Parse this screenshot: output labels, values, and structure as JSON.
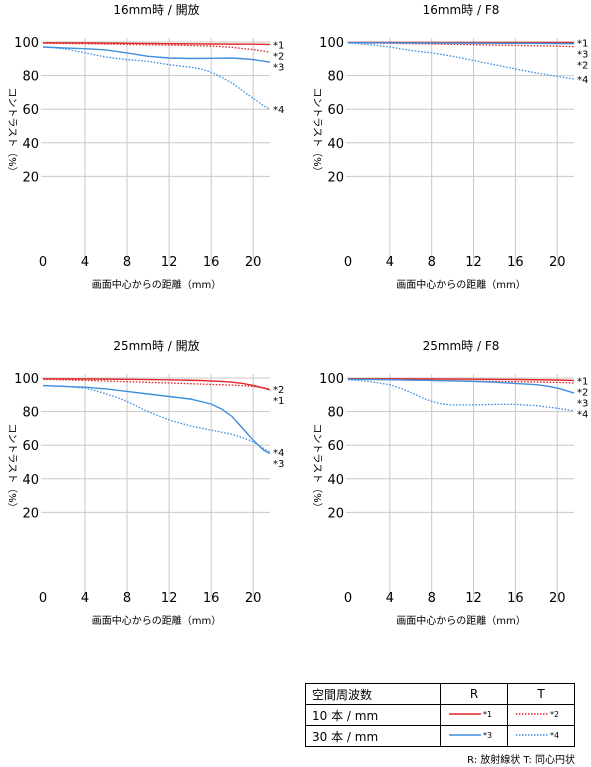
{
  "colors": {
    "red": "#e32626",
    "blue": "#3f8ede",
    "grid": "#c8c8c8"
  },
  "chart_data": [
    {
      "type": "line",
      "title": "16mm時 / 開放",
      "xlabel": "画面中心からの距離（mm）",
      "ylabel": "コントラスト（%）",
      "xlim": [
        0,
        21.6
      ],
      "ylim": [
        0,
        100
      ],
      "xticks": [
        0,
        4,
        8,
        12,
        16,
        20
      ],
      "yticks": [
        20,
        40,
        60,
        80,
        100
      ],
      "grid": true,
      "series": [
        {
          "name": "*1",
          "color": "red",
          "dash": "solid",
          "x": [
            0,
            4,
            8,
            12,
            16,
            20,
            21.6
          ],
          "y": [
            99.5,
            99.4,
            99.2,
            99,
            98.8,
            98.7,
            98.6
          ]
        },
        {
          "name": "*2",
          "color": "red",
          "dash": "dotted",
          "x": [
            0,
            4,
            8,
            12,
            16,
            18,
            20,
            21.6
          ],
          "y": [
            99.3,
            99,
            98.6,
            98.2,
            97.6,
            96.8,
            95.5,
            94
          ]
        },
        {
          "name": "*3",
          "color": "blue",
          "dash": "solid",
          "x": [
            0,
            2,
            4,
            6,
            8,
            10,
            12,
            14,
            16,
            18,
            20,
            21.6
          ],
          "y": [
            97,
            96.5,
            96,
            95.3,
            93.5,
            91.5,
            90.5,
            90.2,
            90.3,
            90.5,
            89.5,
            88
          ]
        },
        {
          "name": "*4",
          "color": "blue",
          "dash": "dotted",
          "x": [
            0,
            2,
            4,
            6,
            8,
            10,
            12,
            14,
            15,
            16,
            17,
            18,
            19,
            20,
            21,
            21.6
          ],
          "y": [
            97,
            96,
            93.5,
            91,
            89.5,
            88.5,
            86.5,
            85,
            84,
            82,
            79,
            75.5,
            71,
            66.5,
            62,
            60
          ]
        }
      ]
    },
    {
      "type": "line",
      "title": "16mm時 / F8",
      "xlabel": "画面中心からの距離（mm）",
      "ylabel": "コントラスト（%）",
      "xlim": [
        0,
        21.6
      ],
      "ylim": [
        0,
        100
      ],
      "xticks": [
        0,
        4,
        8,
        12,
        16,
        20
      ],
      "yticks": [
        20,
        40,
        60,
        80,
        100
      ],
      "grid": true,
      "series": [
        {
          "name": "*1",
          "color": "red",
          "dash": "solid",
          "x": [
            0,
            4,
            8,
            12,
            16,
            20,
            21.6
          ],
          "y": [
            99.7,
            99.7,
            99.7,
            99.7,
            99.7,
            99.7,
            99.7
          ]
        },
        {
          "name": "*2",
          "color": "red",
          "dash": "dotted",
          "x": [
            0,
            4,
            8,
            12,
            16,
            20,
            21.6
          ],
          "y": [
            99.6,
            99.2,
            98.8,
            98.4,
            98,
            97.5,
            97.2
          ]
        },
        {
          "name": "*3",
          "color": "blue",
          "dash": "solid",
          "x": [
            0,
            4,
            8,
            12,
            16,
            20,
            21.6
          ],
          "y": [
            99.6,
            99.5,
            99.4,
            99.3,
            99.2,
            99.1,
            99
          ]
        },
        {
          "name": "*4",
          "color": "blue",
          "dash": "dotted",
          "x": [
            0,
            2,
            4,
            6,
            8,
            10,
            12,
            14,
            16,
            18,
            20,
            21.6
          ],
          "y": [
            99.5,
            98.5,
            97,
            95,
            93.5,
            91.5,
            89,
            86.5,
            84,
            81.5,
            79.5,
            78
          ]
        }
      ]
    },
    {
      "type": "line",
      "title": "25mm時 / 開放",
      "xlabel": "画面中心からの距離（mm）",
      "ylabel": "コントラスト（%）",
      "xlim": [
        0,
        21.6
      ],
      "ylim": [
        0,
        100
      ],
      "xticks": [
        0,
        4,
        8,
        12,
        16,
        20
      ],
      "yticks": [
        20,
        40,
        60,
        80,
        100
      ],
      "grid": true,
      "series": [
        {
          "name": "*1",
          "color": "red",
          "dash": "solid",
          "x": [
            0,
            4,
            8,
            12,
            15,
            17,
            18,
            19,
            20,
            21,
            21.6
          ],
          "y": [
            99.5,
            99.4,
            99.2,
            98.9,
            98.5,
            98,
            97.5,
            96.8,
            95.6,
            94,
            93
          ]
        },
        {
          "name": "*2",
          "color": "red",
          "dash": "dotted",
          "x": [
            0,
            4,
            8,
            12,
            16,
            18,
            20,
            21.6
          ],
          "y": [
            99.2,
            98.6,
            97.8,
            97,
            96.2,
            95.8,
            95,
            93.5
          ]
        },
        {
          "name": "*3",
          "color": "blue",
          "dash": "solid",
          "x": [
            0,
            2,
            4,
            6,
            8,
            10,
            12,
            14,
            16,
            17,
            18,
            19,
            20,
            21,
            21.6
          ],
          "y": [
            95.5,
            95,
            94.5,
            93.5,
            92,
            90.5,
            89,
            87.5,
            84.5,
            81.5,
            77,
            70,
            63,
            57,
            55
          ]
        },
        {
          "name": "*4",
          "color": "blue",
          "dash": "dotted",
          "x": [
            0,
            2,
            4,
            5,
            6,
            7,
            8,
            10,
            12,
            14,
            16,
            18,
            19,
            20,
            21,
            21.6
          ],
          "y": [
            95.5,
            95,
            94,
            92.5,
            90.5,
            88.5,
            86,
            80,
            75,
            71.5,
            69,
            66.5,
            64.5,
            62,
            58,
            56
          ]
        }
      ]
    },
    {
      "type": "line",
      "title": "25mm時 / F8",
      "xlabel": "画面中心からの距離（mm）",
      "ylabel": "コントラスト（%）",
      "xlim": [
        0,
        21.6
      ],
      "ylim": [
        0,
        100
      ],
      "xticks": [
        0,
        4,
        8,
        12,
        16,
        20
      ],
      "yticks": [
        20,
        40,
        60,
        80,
        100
      ],
      "grid": true,
      "series": [
        {
          "name": "*1",
          "color": "red",
          "dash": "solid",
          "x": [
            0,
            4,
            8,
            12,
            16,
            20,
            21.6
          ],
          "y": [
            99.6,
            99.5,
            99.4,
            99.3,
            99.1,
            98.8,
            98.6
          ]
        },
        {
          "name": "*2",
          "color": "red",
          "dash": "dotted",
          "x": [
            0,
            4,
            8,
            12,
            16,
            20,
            21.6
          ],
          "y": [
            99.3,
            99,
            98.6,
            98.2,
            97.8,
            97.4,
            97
          ]
        },
        {
          "name": "*3",
          "color": "blue",
          "dash": "solid",
          "x": [
            0,
            4,
            8,
            12,
            14,
            16,
            18,
            19,
            20,
            21,
            21.6
          ],
          "y": [
            99.3,
            99,
            98.6,
            98,
            97.5,
            96.8,
            96,
            95.2,
            94,
            92.2,
            91
          ]
        },
        {
          "name": "*4",
          "color": "blue",
          "dash": "dotted",
          "x": [
            0,
            2,
            4,
            5,
            6,
            7,
            8,
            9,
            10,
            12,
            14,
            16,
            18,
            20,
            21.6
          ],
          "y": [
            99,
            98,
            96,
            94,
            91.5,
            88.5,
            86,
            84.5,
            84,
            84,
            84.3,
            84.3,
            83.5,
            82,
            80.5
          ]
        }
      ]
    }
  ],
  "legend": {
    "header": "空間周波数",
    "col_r": "R",
    "col_t": "T",
    "rows": [
      {
        "label": "10 本 / mm",
        "r_mark": "*1",
        "t_mark": "*2",
        "color": "red"
      },
      {
        "label": "30 本 / mm",
        "r_mark": "*3",
        "t_mark": "*4",
        "color": "blue"
      }
    ],
    "note": "R: 放射線状  T: 同心円状"
  }
}
